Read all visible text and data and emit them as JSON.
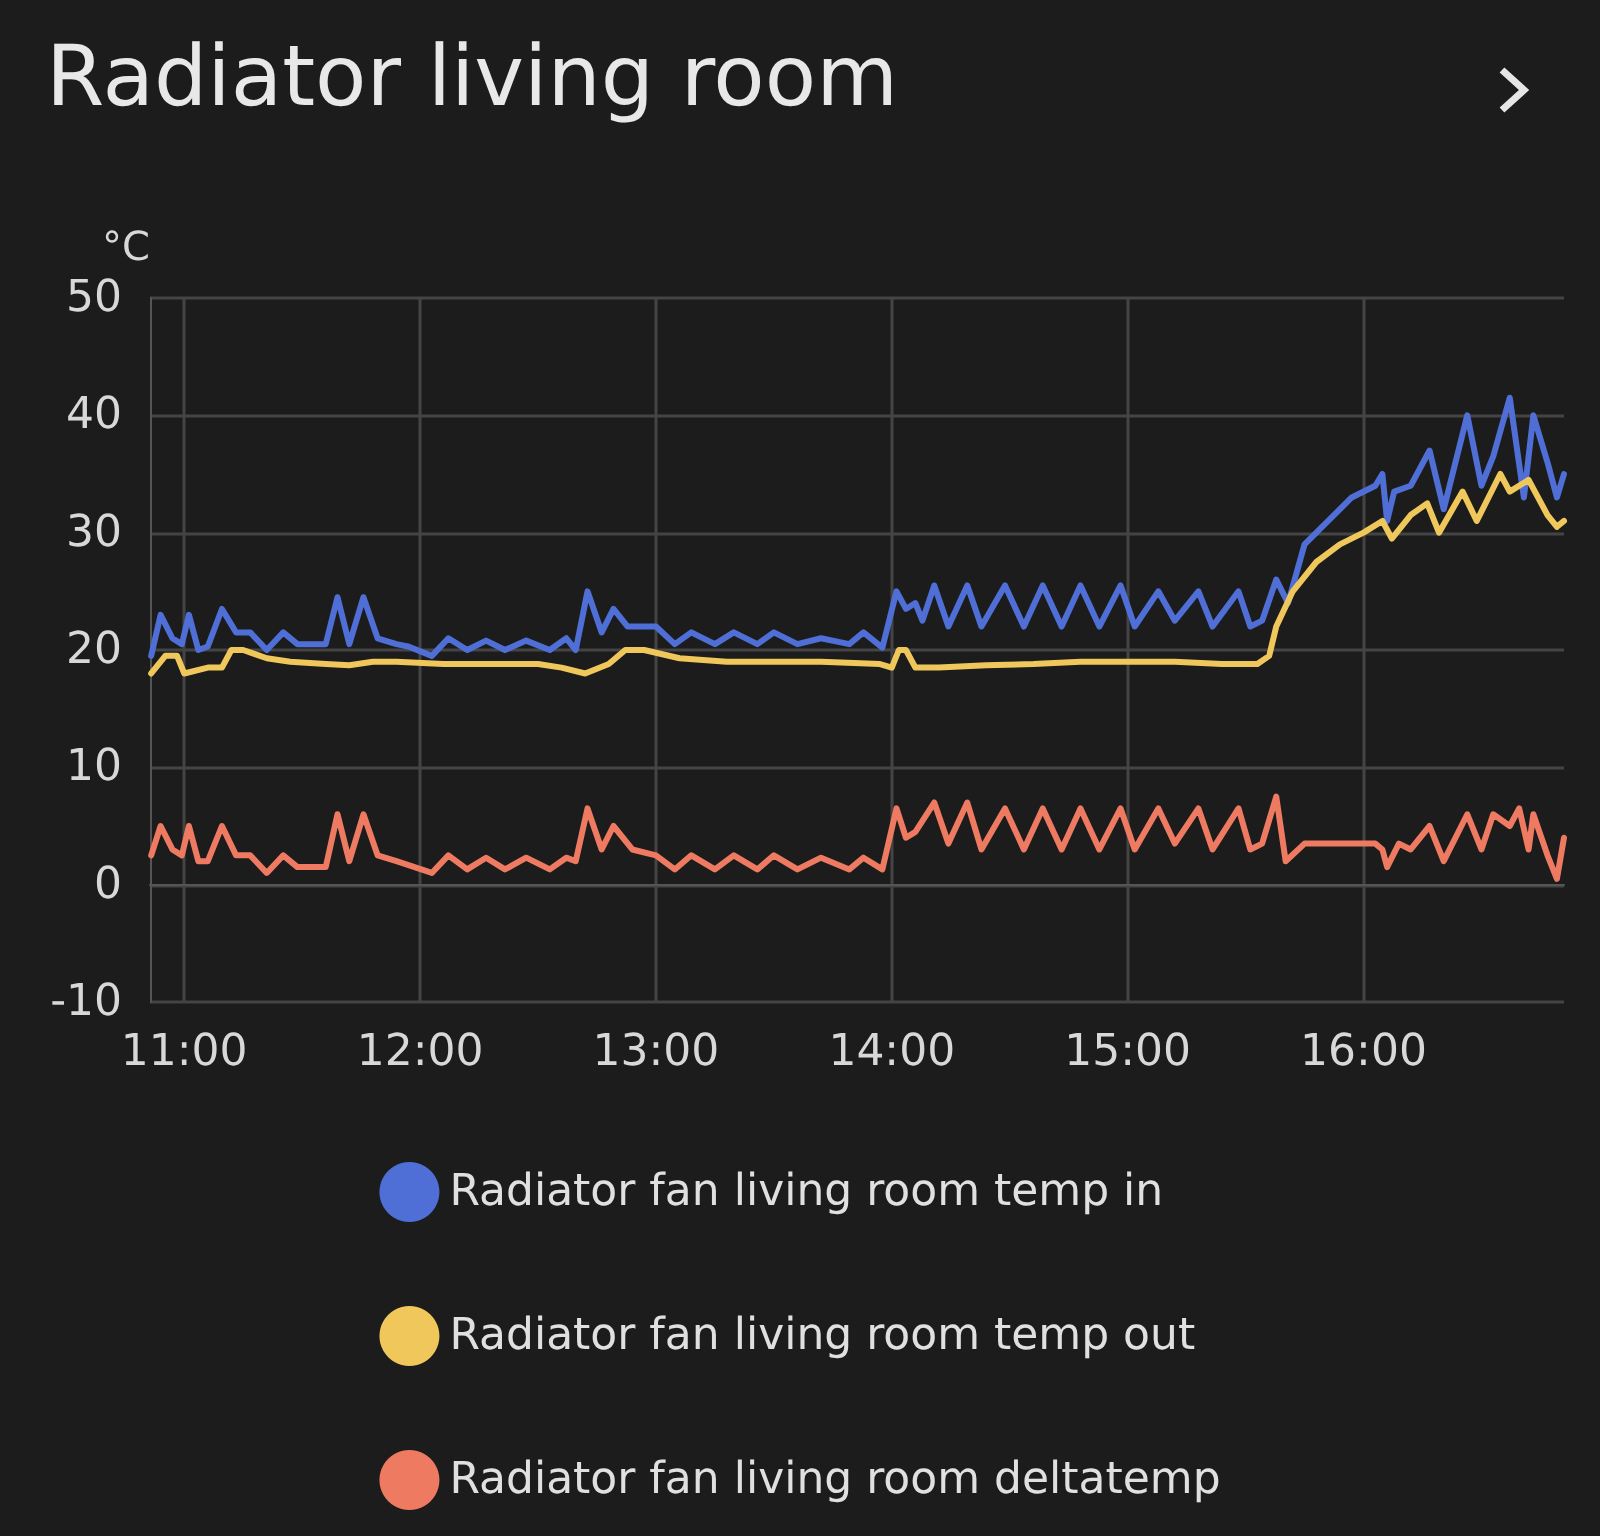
{
  "chart_data": {
    "type": "line",
    "title": "Radiator living room",
    "ylabel": "°C",
    "xlim": [
      10.855,
      16.85
    ],
    "xticks": [
      {
        "value": 11,
        "label": "11:00"
      },
      {
        "value": 12,
        "label": "12:00"
      },
      {
        "value": 13,
        "label": "13:00"
      },
      {
        "value": 14,
        "label": "14:00"
      },
      {
        "value": 15,
        "label": "15:00"
      },
      {
        "value": 16,
        "label": "16:00"
      }
    ],
    "ylim": [
      -10,
      50
    ],
    "yticks": [
      -10,
      0,
      10,
      20,
      30,
      40,
      50
    ],
    "grid": true,
    "legend": "bottom",
    "marker": "none",
    "line_style": "solid",
    "series": [
      {
        "name": "Radiator fan living room temp in",
        "color": "#4f6fd6",
        "x": [
          10.86,
          10.9,
          10.95,
          10.99,
          11.02,
          11.06,
          11.1,
          11.16,
          11.22,
          11.28,
          11.35,
          11.42,
          11.48,
          11.6,
          11.65,
          11.7,
          11.76,
          11.82,
          11.9,
          11.95,
          12.05,
          12.12,
          12.2,
          12.28,
          12.36,
          12.45,
          12.55,
          12.62,
          12.66,
          12.71,
          12.77,
          12.82,
          12.88,
          13.0,
          13.08,
          13.15,
          13.25,
          13.33,
          13.43,
          13.5,
          13.6,
          13.7,
          13.82,
          13.88,
          13.96,
          14.02,
          14.06,
          14.1,
          14.13,
          14.18,
          14.24,
          14.32,
          14.38,
          14.48,
          14.56,
          14.64,
          14.72,
          14.8,
          14.88,
          14.97,
          15.03,
          15.13,
          15.2,
          15.3,
          15.36,
          15.47,
          15.52,
          15.57,
          15.63,
          15.68,
          15.75,
          15.85,
          15.95,
          16.05,
          16.08,
          16.1,
          16.13,
          16.2,
          16.28,
          16.34,
          16.44,
          16.5,
          16.55,
          16.62,
          16.68,
          16.72,
          16.78,
          16.82,
          16.85
        ],
        "values": [
          19.5,
          23,
          21,
          20.5,
          23,
          20,
          20.3,
          23.5,
          21.5,
          21.5,
          20,
          21.5,
          20.5,
          20.5,
          24.5,
          20.5,
          24.5,
          21,
          20.5,
          20.3,
          19.5,
          21,
          20,
          20.8,
          20,
          20.8,
          20,
          21,
          20,
          25,
          21.5,
          23.5,
          22,
          22,
          20.5,
          21.5,
          20.5,
          21.5,
          20.5,
          21.5,
          20.5,
          21,
          20.5,
          21.5,
          20.2,
          25,
          23.5,
          24,
          22.5,
          25.5,
          22,
          25.5,
          22,
          25.5,
          22,
          25.5,
          22,
          25.5,
          22,
          25.5,
          22,
          25,
          22.5,
          25,
          22,
          25,
          22,
          22.5,
          26,
          24,
          29,
          31,
          33,
          34,
          35,
          31,
          33.5,
          34,
          37,
          32,
          40,
          34,
          36.5,
          41.5,
          33,
          40,
          36,
          33,
          35
        ]
      },
      {
        "name": "Radiator fan living room temp out",
        "color": "#f0c75a",
        "x": [
          10.86,
          10.92,
          10.97,
          11.0,
          11.1,
          11.16,
          11.2,
          11.25,
          11.35,
          11.45,
          11.6,
          11.7,
          11.8,
          11.9,
          12.1,
          12.3,
          12.5,
          12.6,
          12.7,
          12.8,
          12.87,
          12.95,
          13.1,
          13.3,
          13.5,
          13.7,
          13.95,
          14.0,
          14.03,
          14.06,
          14.1,
          14.2,
          14.4,
          14.6,
          14.8,
          15.0,
          15.2,
          15.4,
          15.55,
          15.6,
          15.63,
          15.7,
          15.8,
          15.9,
          16.0,
          16.08,
          16.12,
          16.2,
          16.27,
          16.32,
          16.42,
          16.48,
          16.58,
          16.62,
          16.7,
          16.78,
          16.82,
          16.85
        ],
        "values": [
          18,
          19.5,
          19.5,
          18,
          18.5,
          18.5,
          20,
          20,
          19.3,
          19,
          18.8,
          18.7,
          19,
          19,
          18.8,
          18.8,
          18.8,
          18.5,
          18,
          18.8,
          20,
          20,
          19.3,
          19,
          19,
          19,
          18.8,
          18.5,
          20,
          20,
          18.5,
          18.5,
          18.7,
          18.8,
          19,
          19,
          19,
          18.8,
          18.8,
          19.5,
          22,
          25,
          27.5,
          29,
          30,
          31,
          29.5,
          31.5,
          32.5,
          30,
          33.5,
          31,
          35,
          33.5,
          34.5,
          31.5,
          30.5,
          31
        ]
      },
      {
        "name": "Radiator fan living room deltatemp",
        "color": "#ee7a62",
        "x": [
          10.86,
          10.9,
          10.95,
          10.99,
          11.02,
          11.06,
          11.1,
          11.16,
          11.22,
          11.28,
          11.35,
          11.42,
          11.48,
          11.6,
          11.65,
          11.7,
          11.76,
          11.82,
          11.9,
          12.05,
          12.12,
          12.2,
          12.28,
          12.36,
          12.45,
          12.55,
          12.62,
          12.66,
          12.71,
          12.77,
          12.82,
          12.9,
          13.0,
          13.08,
          13.15,
          13.25,
          13.33,
          13.43,
          13.5,
          13.6,
          13.7,
          13.82,
          13.88,
          13.96,
          14.02,
          14.06,
          14.1,
          14.18,
          14.24,
          14.32,
          14.38,
          14.48,
          14.56,
          14.64,
          14.72,
          14.8,
          14.88,
          14.97,
          15.03,
          15.13,
          15.2,
          15.3,
          15.36,
          15.47,
          15.52,
          15.57,
          15.63,
          15.67,
          15.75,
          15.85,
          15.95,
          16.05,
          16.08,
          16.1,
          16.15,
          16.2,
          16.28,
          16.34,
          16.44,
          16.5,
          16.55,
          16.62,
          16.66,
          16.7,
          16.72,
          16.78,
          16.82,
          16.85
        ],
        "values": [
          2.5,
          5,
          3,
          2.5,
          5,
          2,
          2,
          5,
          2.5,
          2.5,
          1,
          2.5,
          1.5,
          1.5,
          6,
          2,
          6,
          2.5,
          2,
          1,
          2.5,
          1.3,
          2.3,
          1.3,
          2.3,
          1.3,
          2.3,
          2,
          6.5,
          3,
          5,
          3,
          2.5,
          1.3,
          2.5,
          1.3,
          2.5,
          1.3,
          2.5,
          1.3,
          2.3,
          1.3,
          2.3,
          1.3,
          6.5,
          4,
          4.5,
          7,
          3.5,
          7,
          3,
          6.5,
          3,
          6.5,
          3,
          6.5,
          3,
          6.5,
          3,
          6.5,
          3.5,
          6.5,
          3,
          6.5,
          3,
          3.5,
          7.5,
          2,
          3.5,
          3.5,
          3.5,
          3.5,
          3,
          1.5,
          3.5,
          3,
          5,
          2,
          6,
          3,
          6,
          5,
          6.5,
          3,
          6,
          2.5,
          0.5,
          4
        ]
      }
    ]
  }
}
